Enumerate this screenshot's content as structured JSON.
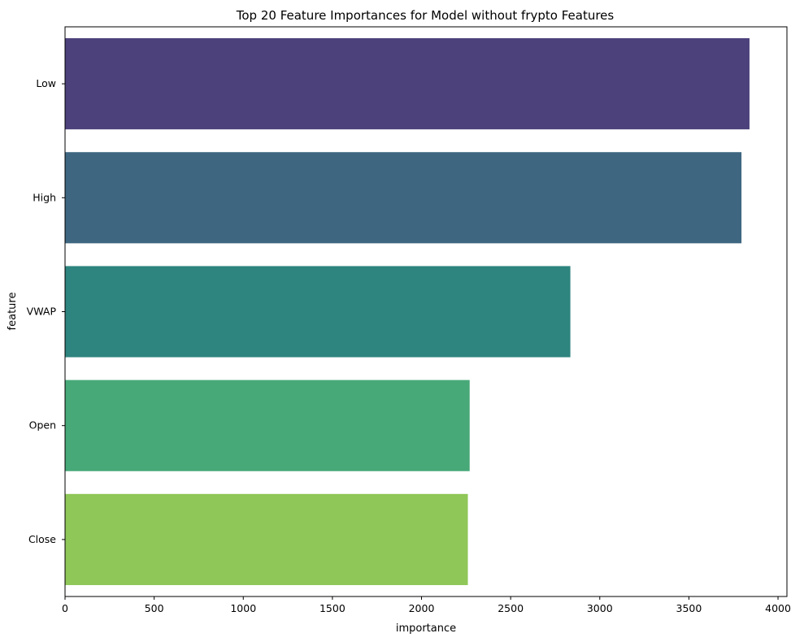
{
  "chart_data": {
    "type": "bar",
    "orientation": "horizontal",
    "title": "Top 20 Feature Importances for Model without frypto Features",
    "xlabel": "importance",
    "ylabel": "feature",
    "xlim": [
      0,
      4050
    ],
    "xticks": [
      0,
      500,
      1000,
      1500,
      2000,
      2500,
      3000,
      3500,
      4000
    ],
    "categories": [
      "Low",
      "High",
      "VWAP",
      "Open",
      "Close"
    ],
    "values": [
      3840,
      3795,
      2835,
      2270,
      2260
    ],
    "colors": [
      "#4c417b",
      "#3e6681",
      "#2e847e",
      "#47a878",
      "#8fc758"
    ],
    "grid": false
  }
}
